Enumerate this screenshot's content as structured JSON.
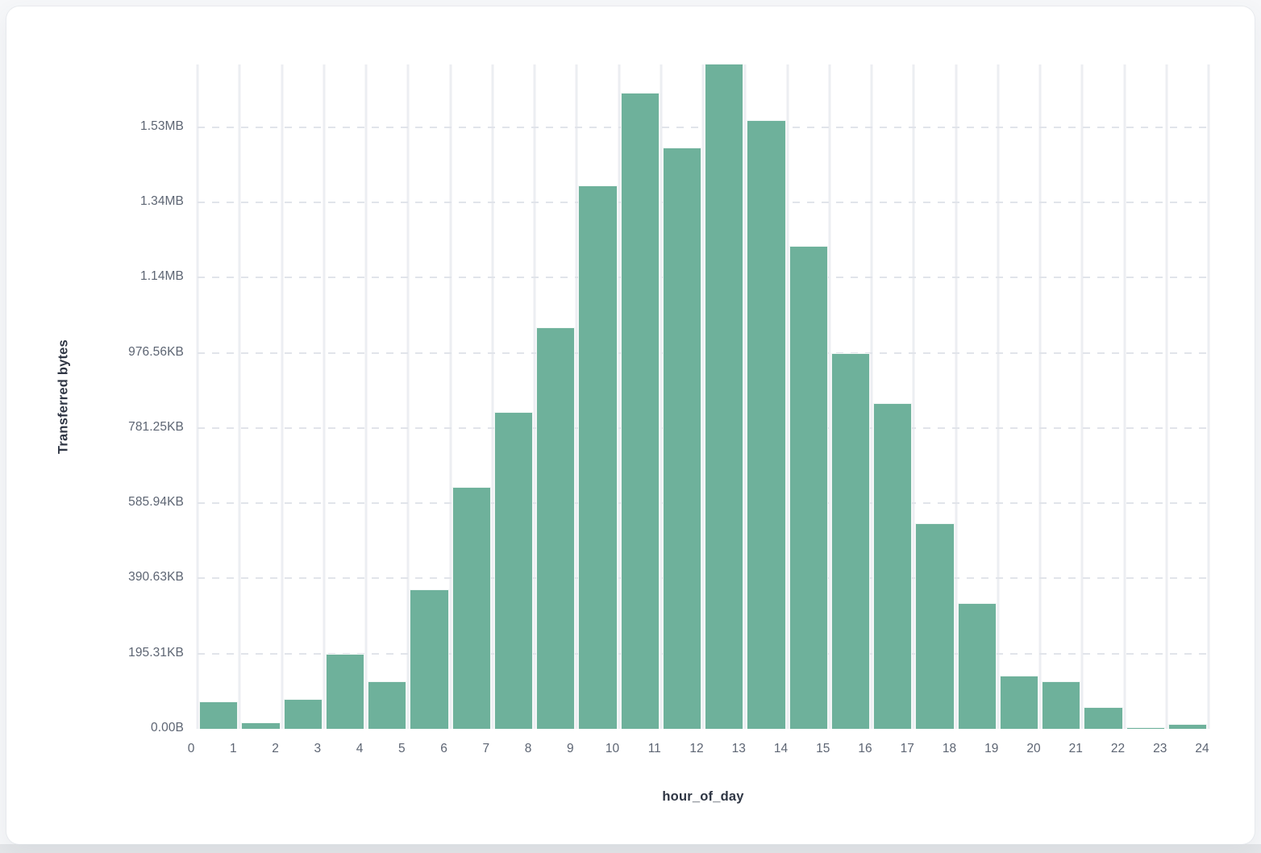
{
  "page": {
    "background": "#f6f7f9",
    "bottom_strip_color": "#e3e5e8",
    "card_background": "#ffffff"
  },
  "chart_data": {
    "type": "bar",
    "title": "",
    "xlabel": "hour_of_day",
    "ylabel": "Transferred bytes",
    "bar_color": "#6eb19b",
    "grid": true,
    "legend_position": "none",
    "xlim": [
      0,
      24
    ],
    "ylim_bytes": [
      0,
      1766000
    ],
    "x_tick_labels": [
      "0",
      "1",
      "2",
      "3",
      "4",
      "5",
      "6",
      "7",
      "8",
      "9",
      "10",
      "11",
      "12",
      "13",
      "14",
      "15",
      "16",
      "17",
      "18",
      "19",
      "20",
      "21",
      "22",
      "23",
      "24"
    ],
    "y_tick_labels": [
      "0.00B",
      "195.31KB",
      "390.63KB",
      "585.94KB",
      "781.25KB",
      "976.56KB",
      "1.14MB",
      "1.34MB",
      "1.53MB"
    ],
    "y_tick_bytes": [
      0,
      200000,
      400000,
      600000,
      800000,
      1000000,
      1200000,
      1400000,
      1600000
    ],
    "bin_start_hours": [
      0,
      1,
      2,
      3,
      4,
      5,
      6,
      7,
      8,
      9,
      10,
      11,
      12,
      13,
      14,
      15,
      16,
      17,
      18,
      19,
      20,
      21,
      22,
      23
    ],
    "values_bytes": [
      72900,
      17100,
      79300,
      199400,
      126500,
      370800,
      643100,
      842400,
      1067500,
      1444800,
      1691300,
      1545600,
      1768500,
      1618400,
      1284000,
      998900,
      866000,
      546600,
      334400,
      141500,
      126500,
      57900,
      4300,
      12900
    ]
  }
}
